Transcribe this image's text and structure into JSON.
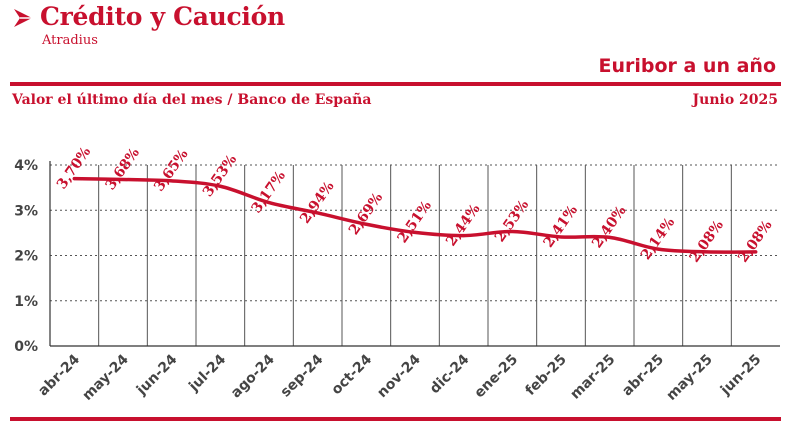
{
  "brand": {
    "name": "Crédito y Caución",
    "sub": "Atradius"
  },
  "title": "Euribor a un año",
  "subtitle": "Valor el último día del mes / Banco de España",
  "date_label": "Junio 2025",
  "colors": {
    "accent": "#c8102e",
    "axis_text": "#444444",
    "grid": "#555555"
  },
  "chart_data": {
    "type": "line",
    "title": "Euribor a un año",
    "categories": [
      "abr-24",
      "may-24",
      "jun-24",
      "jul-24",
      "ago-24",
      "sep-24",
      "oct-24",
      "nov-24",
      "dic-24",
      "ene-25",
      "feb-25",
      "mar-25",
      "abr-25",
      "may-25",
      "jun-25"
    ],
    "values": [
      3.7,
      3.68,
      3.65,
      3.53,
      3.17,
      2.94,
      2.69,
      2.51,
      2.44,
      2.53,
      2.41,
      2.4,
      2.14,
      2.08,
      2.08
    ],
    "value_labels": [
      "3,70%",
      "3,68%",
      "3,65%",
      "3,53%",
      "3,17%",
      "2,94%",
      "2,69%",
      "2,51%",
      "2,44%",
      "2,53%",
      "2,41%",
      "2,40%",
      "2,14%",
      "2,08%",
      "2,08%"
    ],
    "y_ticks": [
      "0%",
      "1%",
      "2%",
      "3%",
      "4%"
    ],
    "ylim": [
      0,
      4
    ],
    "grid": "vertical",
    "xlabel": "",
    "ylabel": ""
  }
}
